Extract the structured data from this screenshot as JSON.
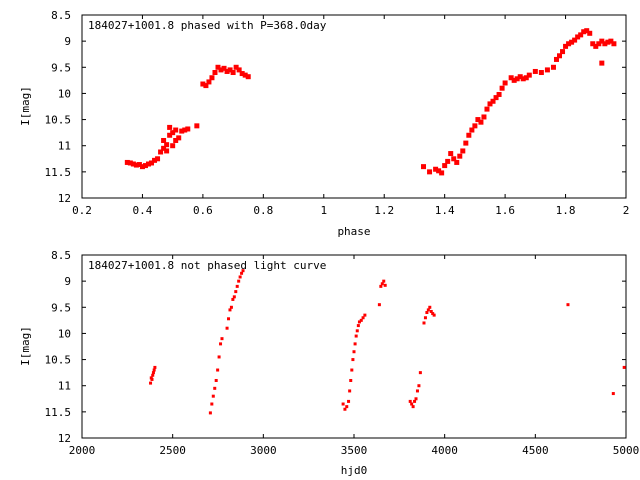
{
  "colors": {
    "series": "#ff0000",
    "axis": "#000000",
    "background": "#ffffff"
  },
  "chart_data": [
    {
      "type": "scatter",
      "title": "184027+1001.8 phased with P=368.0day",
      "xlabel": "phase",
      "ylabel": "I[mag]",
      "xlim": [
        0.2,
        2.0
      ],
      "ylim": [
        8.5,
        12.0
      ],
      "y_inverted": true,
      "grid": false,
      "x_ticks": [
        "0.2",
        "0.4",
        "0.6",
        "0.8",
        "1",
        "1.2",
        "1.4",
        "1.6",
        "1.8",
        "2"
      ],
      "y_ticks": [
        "8.5",
        "9",
        "9.5",
        "10",
        "10.5",
        "11",
        "11.5",
        "12"
      ],
      "x_tick_values": [
        0.2,
        0.4,
        0.6,
        0.8,
        1.0,
        1.2,
        1.4,
        1.6,
        1.8,
        2.0
      ],
      "y_tick_values": [
        8.5,
        9.0,
        9.5,
        10.0,
        10.5,
        11.0,
        11.5,
        12.0
      ],
      "series": [
        {
          "marker": "filled-square",
          "points": [
            [
              0.35,
              11.32
            ],
            [
              0.36,
              11.33
            ],
            [
              0.37,
              11.35
            ],
            [
              0.38,
              11.37
            ],
            [
              0.39,
              11.36
            ],
            [
              0.4,
              11.4
            ],
            [
              0.41,
              11.38
            ],
            [
              0.42,
              11.35
            ],
            [
              0.43,
              11.33
            ],
            [
              0.44,
              11.28
            ],
            [
              0.45,
              11.25
            ],
            [
              0.46,
              11.12
            ],
            [
              0.47,
              11.05
            ],
            [
              0.47,
              10.9
            ],
            [
              0.48,
              10.98
            ],
            [
              0.48,
              11.1
            ],
            [
              0.49,
              10.8
            ],
            [
              0.49,
              10.65
            ],
            [
              0.5,
              11.0
            ],
            [
              0.5,
              10.75
            ],
            [
              0.51,
              10.9
            ],
            [
              0.51,
              10.7
            ],
            [
              0.52,
              10.85
            ],
            [
              0.53,
              10.72
            ],
            [
              0.54,
              10.7
            ],
            [
              0.55,
              10.68
            ],
            [
              0.58,
              10.62
            ],
            [
              0.6,
              9.82
            ],
            [
              0.61,
              9.85
            ],
            [
              0.62,
              9.78
            ],
            [
              0.63,
              9.7
            ],
            [
              0.64,
              9.6
            ],
            [
              0.65,
              9.5
            ],
            [
              0.66,
              9.55
            ],
            [
              0.67,
              9.52
            ],
            [
              0.68,
              9.58
            ],
            [
              0.69,
              9.55
            ],
            [
              0.7,
              9.6
            ],
            [
              0.71,
              9.5
            ],
            [
              0.72,
              9.55
            ],
            [
              0.73,
              9.62
            ],
            [
              0.74,
              9.65
            ],
            [
              0.75,
              9.68
            ],
            [
              1.33,
              11.4
            ],
            [
              1.35,
              11.5
            ],
            [
              1.37,
              11.45
            ],
            [
              1.38,
              11.48
            ],
            [
              1.39,
              11.52
            ],
            [
              1.4,
              11.38
            ],
            [
              1.41,
              11.3
            ],
            [
              1.42,
              11.15
            ],
            [
              1.43,
              11.25
            ],
            [
              1.44,
              11.32
            ],
            [
              1.45,
              11.2
            ],
            [
              1.46,
              11.1
            ],
            [
              1.47,
              10.95
            ],
            [
              1.48,
              10.8
            ],
            [
              1.49,
              10.7
            ],
            [
              1.5,
              10.62
            ],
            [
              1.51,
              10.5
            ],
            [
              1.52,
              10.55
            ],
            [
              1.53,
              10.45
            ],
            [
              1.54,
              10.3
            ],
            [
              1.55,
              10.2
            ],
            [
              1.56,
              10.15
            ],
            [
              1.57,
              10.08
            ],
            [
              1.58,
              10.02
            ],
            [
              1.59,
              9.9
            ],
            [
              1.6,
              9.8
            ],
            [
              1.62,
              9.7
            ],
            [
              1.63,
              9.75
            ],
            [
              1.64,
              9.72
            ],
            [
              1.65,
              9.68
            ],
            [
              1.66,
              9.72
            ],
            [
              1.67,
              9.7
            ],
            [
              1.68,
              9.65
            ],
            [
              1.7,
              9.58
            ],
            [
              1.72,
              9.6
            ],
            [
              1.74,
              9.55
            ],
            [
              1.76,
              9.5
            ],
            [
              1.77,
              9.35
            ],
            [
              1.78,
              9.28
            ],
            [
              1.79,
              9.2
            ],
            [
              1.8,
              9.1
            ],
            [
              1.81,
              9.05
            ],
            [
              1.82,
              9.02
            ],
            [
              1.83,
              8.98
            ],
            [
              1.84,
              8.92
            ],
            [
              1.85,
              8.88
            ],
            [
              1.86,
              8.82
            ],
            [
              1.87,
              8.8
            ],
            [
              1.88,
              8.85
            ],
            [
              1.89,
              9.05
            ],
            [
              1.9,
              9.1
            ],
            [
              1.91,
              9.05
            ],
            [
              1.92,
              9.0
            ],
            [
              1.93,
              9.05
            ],
            [
              1.94,
              9.02
            ],
            [
              1.95,
              9.0
            ],
            [
              1.96,
              9.05
            ],
            [
              1.92,
              9.42
            ]
          ]
        }
      ]
    },
    {
      "type": "scatter",
      "title": "184027+1001.8 not phased light curve",
      "xlabel": "hjd0",
      "ylabel": "I[mag]",
      "xlim": [
        2000,
        5000
      ],
      "ylim": [
        8.5,
        12.0
      ],
      "y_inverted": true,
      "grid": false,
      "x_ticks": [
        "2000",
        "2500",
        "3000",
        "3500",
        "4000",
        "4500",
        "5000"
      ],
      "y_ticks": [
        "8.5",
        "9",
        "9.5",
        "10",
        "10.5",
        "11",
        "11.5",
        "12"
      ],
      "x_tick_values": [
        2000,
        2500,
        3000,
        3500,
        4000,
        4500,
        5000
      ],
      "y_tick_values": [
        8.5,
        9.0,
        9.5,
        10.0,
        10.5,
        11.0,
        11.5,
        12.0
      ],
      "series": [
        {
          "marker": "small-filled-square",
          "points": [
            [
              2378,
              10.95
            ],
            [
              2382,
              10.85
            ],
            [
              2386,
              10.88
            ],
            [
              2390,
              10.8
            ],
            [
              2394,
              10.75
            ],
            [
              2398,
              10.7
            ],
            [
              2402,
              10.65
            ],
            [
              2708,
              11.52
            ],
            [
              2716,
              11.35
            ],
            [
              2724,
              11.2
            ],
            [
              2732,
              11.05
            ],
            [
              2740,
              10.9
            ],
            [
              2748,
              10.7
            ],
            [
              2756,
              10.45
            ],
            [
              2764,
              10.2
            ],
            [
              2772,
              10.1
            ],
            [
              2800,
              9.9
            ],
            [
              2808,
              9.72
            ],
            [
              2816,
              9.55
            ],
            [
              2824,
              9.5
            ],
            [
              2832,
              9.35
            ],
            [
              2840,
              9.3
            ],
            [
              2848,
              9.2
            ],
            [
              2856,
              9.1
            ],
            [
              2864,
              9.0
            ],
            [
              2872,
              8.92
            ],
            [
              2880,
              8.85
            ],
            [
              2888,
              8.8
            ],
            [
              3440,
              11.35
            ],
            [
              3450,
              11.45
            ],
            [
              3460,
              11.4
            ],
            [
              3470,
              11.3
            ],
            [
              3476,
              11.1
            ],
            [
              3482,
              10.9
            ],
            [
              3488,
              10.7
            ],
            [
              3494,
              10.5
            ],
            [
              3500,
              10.35
            ],
            [
              3506,
              10.2
            ],
            [
              3512,
              10.05
            ],
            [
              3518,
              9.95
            ],
            [
              3524,
              9.85
            ],
            [
              3530,
              9.78
            ],
            [
              3540,
              9.75
            ],
            [
              3550,
              9.7
            ],
            [
              3560,
              9.65
            ],
            [
              3640,
              9.45
            ],
            [
              3648,
              9.1
            ],
            [
              3656,
              9.05
            ],
            [
              3664,
              9.0
            ],
            [
              3672,
              9.08
            ],
            [
              3810,
              11.3
            ],
            [
              3818,
              11.35
            ],
            [
              3826,
              11.4
            ],
            [
              3834,
              11.3
            ],
            [
              3842,
              11.25
            ],
            [
              3850,
              11.1
            ],
            [
              3858,
              11.0
            ],
            [
              3866,
              10.75
            ],
            [
              3886,
              9.8
            ],
            [
              3894,
              9.7
            ],
            [
              3902,
              9.6
            ],
            [
              3910,
              9.55
            ],
            [
              3918,
              9.5
            ],
            [
              3926,
              9.58
            ],
            [
              3934,
              9.62
            ],
            [
              3942,
              9.65
            ],
            [
              4680,
              9.45
            ],
            [
              4930,
              11.15
            ],
            [
              4990,
              10.65
            ]
          ]
        }
      ]
    }
  ]
}
